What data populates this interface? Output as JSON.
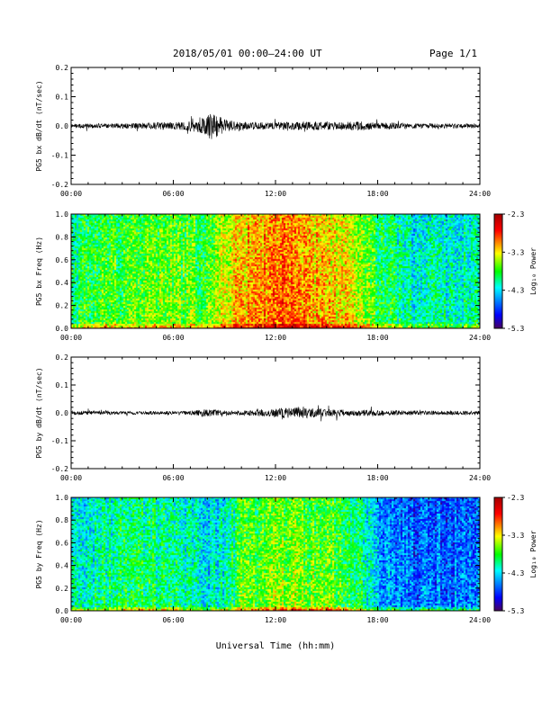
{
  "header": {
    "title": "2018/05/01   00:00–24:00 UT",
    "page": "Page 1/1"
  },
  "footer": {
    "xlabel": "Universal Time (hh:mm)"
  },
  "colors": {
    "trace": "#000000",
    "axis": "#000000",
    "background": "#ffffff"
  },
  "chart_data": [
    {
      "type": "line",
      "id": "bx-waveform",
      "ylabel": "PG5 bx dB/dt (nT/sec)",
      "xlim": [
        0,
        24
      ],
      "ylim": [
        -0.2,
        0.2
      ],
      "x_ticks": [
        "00:00",
        "06:00",
        "12:00",
        "18:00",
        "24:00"
      ],
      "y_ticks": [
        "0.2",
        "0.1",
        "0.0",
        "-0.1",
        "-0.2"
      ],
      "y_tick_values": [
        0.2,
        0.1,
        0.0,
        -0.1,
        -0.2
      ],
      "amplitude_envelope": {
        "hours": [
          0,
          2,
          4,
          5,
          6,
          7,
          7.8,
          8.3,
          9,
          10,
          12,
          14,
          16,
          17,
          18,
          20,
          22,
          24
        ],
        "amplitude": [
          0.008,
          0.008,
          0.01,
          0.014,
          0.012,
          0.016,
          0.03,
          0.05,
          0.022,
          0.014,
          0.012,
          0.014,
          0.015,
          0.016,
          0.012,
          0.009,
          0.008,
          0.008
        ]
      }
    },
    {
      "type": "heatmap",
      "id": "bx-spectrogram",
      "ylabel": "PG5 bx Freq (Hz)",
      "xlim": [
        0,
        24
      ],
      "ylim": [
        0,
        1.0
      ],
      "x_ticks": [
        "00:00",
        "06:00",
        "12:00",
        "18:00",
        "24:00"
      ],
      "y_ticks": [
        "1.0",
        "0.8",
        "0.6",
        "0.4",
        "0.2",
        "0.0"
      ],
      "y_tick_values": [
        1.0,
        0.8,
        0.6,
        0.4,
        0.2,
        0.0
      ],
      "colorbar": {
        "label": "Log₁₀ Power",
        "min": -5.3,
        "max": -2.3,
        "ticks": [
          "-2.3",
          "-3.3",
          "-4.3",
          "-5.3"
        ],
        "tick_values": [
          -2.3,
          -3.3,
          -4.3,
          -5.3
        ]
      },
      "power_profile": {
        "hours": [
          0,
          2,
          4,
          6,
          8,
          9,
          10,
          12,
          14,
          16,
          17,
          18,
          20,
          22,
          24
        ],
        "log_power": [
          -3.9,
          -3.7,
          -3.6,
          -3.6,
          -3.7,
          -3.3,
          -3.1,
          -2.9,
          -3.1,
          -3.2,
          -3.5,
          -3.8,
          -4.1,
          -4.1,
          -4.0
        ]
      }
    },
    {
      "type": "line",
      "id": "by-waveform",
      "ylabel": "PG5 by dB/dt (nT/sec)",
      "xlim": [
        0,
        24
      ],
      "ylim": [
        -0.2,
        0.2
      ],
      "x_ticks": [
        "00:00",
        "06:00",
        "12:00",
        "18:00",
        "24:00"
      ],
      "y_ticks": [
        "0.2",
        "0.1",
        "0.0",
        "-0.1",
        "-0.2"
      ],
      "y_tick_values": [
        0.2,
        0.1,
        0.0,
        -0.1,
        -0.2
      ],
      "amplitude_envelope": {
        "hours": [
          0,
          2,
          4,
          6,
          7,
          8,
          9,
          10,
          11,
          12,
          13,
          13.5,
          14,
          16,
          18,
          20,
          22,
          24
        ],
        "amplitude": [
          0.007,
          0.007,
          0.006,
          0.006,
          0.007,
          0.014,
          0.009,
          0.008,
          0.012,
          0.016,
          0.02,
          0.025,
          0.016,
          0.012,
          0.01,
          0.008,
          0.007,
          0.007
        ]
      }
    },
    {
      "type": "heatmap",
      "id": "by-spectrogram",
      "ylabel": "PG5 by Freq (Hz)",
      "xlim": [
        0,
        24
      ],
      "ylim": [
        0,
        1.0
      ],
      "x_ticks": [
        "00:00",
        "06:00",
        "12:00",
        "18:00",
        "24:00"
      ],
      "y_ticks": [
        "1.0",
        "0.8",
        "0.6",
        "0.4",
        "0.2",
        "0.0"
      ],
      "y_tick_values": [
        1.0,
        0.8,
        0.6,
        0.4,
        0.2,
        0.0
      ],
      "colorbar": {
        "label": "Log₁₀ Power",
        "min": -5.3,
        "max": -2.3,
        "ticks": [
          "-2.3",
          "-3.3",
          "-4.3",
          "-5.3"
        ],
        "tick_values": [
          -2.3,
          -3.3,
          -4.3,
          -5.3
        ]
      },
      "power_profile": {
        "hours": [
          0,
          2,
          4,
          6,
          8,
          9,
          10,
          12,
          14,
          15,
          16,
          17,
          18,
          20,
          22,
          24
        ],
        "log_power": [
          -4.2,
          -4.0,
          -3.9,
          -4.0,
          -4.2,
          -4.1,
          -3.7,
          -3.5,
          -3.6,
          -3.6,
          -3.8,
          -4.0,
          -4.4,
          -4.6,
          -4.6,
          -4.5
        ]
      }
    }
  ]
}
